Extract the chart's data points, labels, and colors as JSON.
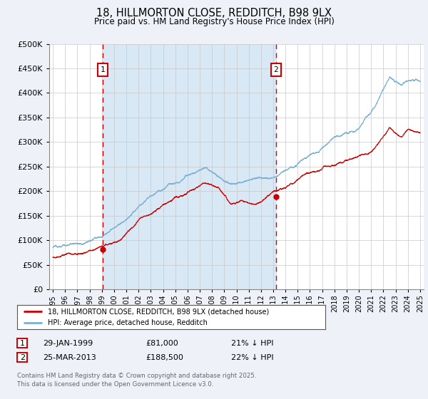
{
  "title": "18, HILLMORTON CLOSE, REDDITCH, B98 9LX",
  "subtitle": "Price paid vs. HM Land Registry's House Price Index (HPI)",
  "legend_label_red": "18, HILLMORTON CLOSE, REDDITCH, B98 9LX (detached house)",
  "legend_label_blue": "HPI: Average price, detached house, Redditch",
  "annotation1_label": "1",
  "annotation1_date": "29-JAN-1999",
  "annotation1_price": 81000,
  "annotation1_note": "21% ↓ HPI",
  "annotation2_label": "2",
  "annotation2_date": "25-MAR-2013",
  "annotation2_price": 188500,
  "annotation2_note": "22% ↓ HPI",
  "footnote": "Contains HM Land Registry data © Crown copyright and database right 2025.\nThis data is licensed under the Open Government Licence v3.0.",
  "background_color": "#eef2f8",
  "plot_bg_color": "#ffffff",
  "shaded_region_color": "#d8e8f5",
  "red_line_color": "#cc0000",
  "blue_line_color": "#7ab0d4",
  "dashed_line_color": "#dd0000",
  "ylim": [
    0,
    500000
  ],
  "yticks": [
    0,
    50000,
    100000,
    150000,
    200000,
    250000,
    300000,
    350000,
    400000,
    450000,
    500000
  ],
  "start_year": 1995,
  "end_year": 2025,
  "sale1_year": 1999.08,
  "sale2_year": 2013.23
}
